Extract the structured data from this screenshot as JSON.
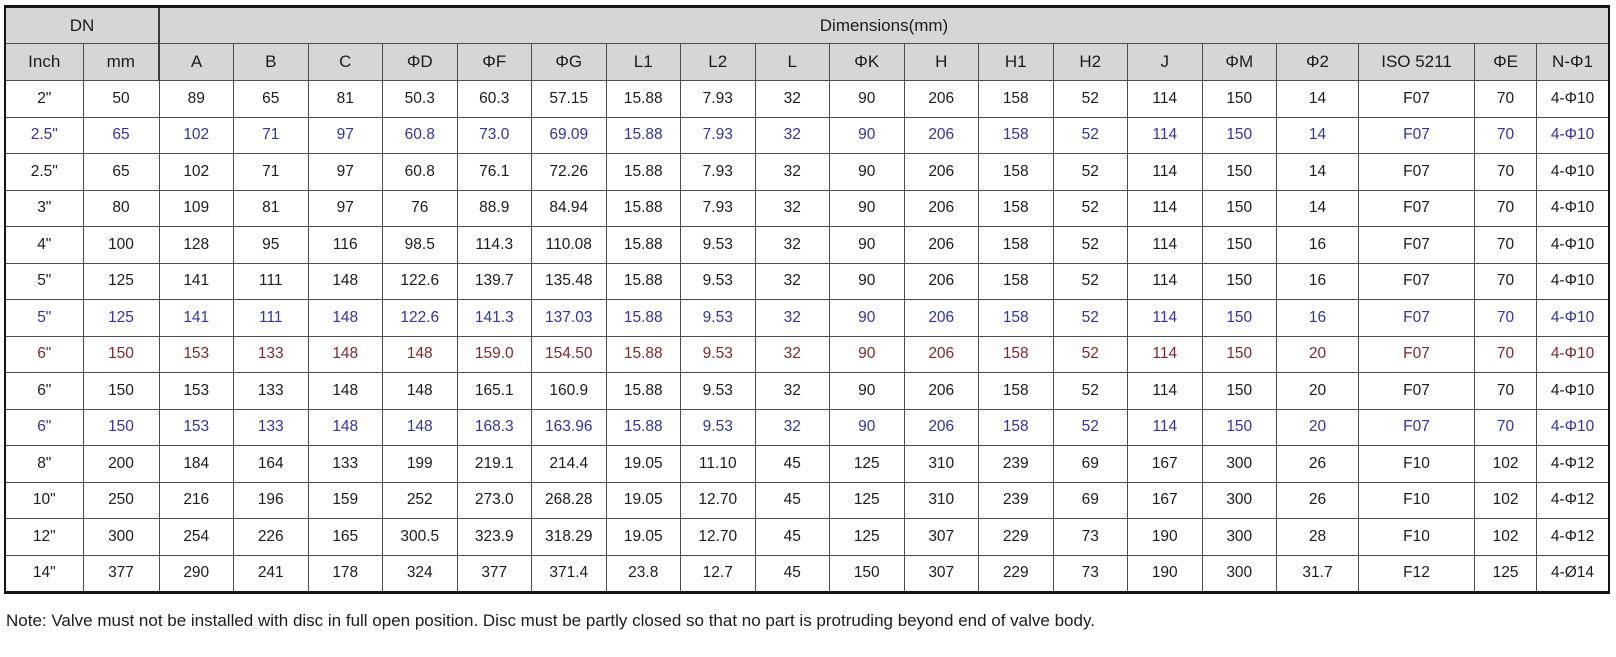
{
  "table": {
    "group_headers": [
      {
        "label": "DN",
        "colspan": 2
      },
      {
        "label": "Dimensions(mm)",
        "colspan": 19
      }
    ],
    "columns": [
      "Inch",
      "mm",
      "A",
      "B",
      "C",
      "ΦD",
      "ΦF",
      "ΦG",
      "L1",
      "L2",
      "L",
      "ΦK",
      "H",
      "H1",
      "H2",
      "J",
      "ΦM",
      "Φ2",
      "ISO 5211",
      "ΦE",
      "N-Φ1"
    ],
    "rows": [
      {
        "color": "black",
        "cells": [
          "2\"",
          "50",
          "89",
          "65",
          "81",
          "50.3",
          "60.3",
          "57.15",
          "15.88",
          "7.93",
          "32",
          "90",
          "206",
          "158",
          "52",
          "114",
          "150",
          "14",
          "F07",
          "70",
          "4-Φ10"
        ]
      },
      {
        "color": "blue",
        "cells": [
          "2.5\"",
          "65",
          "102",
          "71",
          "97",
          "60.8",
          "73.0",
          "69.09",
          "15.88",
          "7.93",
          "32",
          "90",
          "206",
          "158",
          "52",
          "114",
          "150",
          "14",
          "F07",
          "70",
          "4-Φ10"
        ]
      },
      {
        "color": "black",
        "cells": [
          "2.5\"",
          "65",
          "102",
          "71",
          "97",
          "60.8",
          "76.1",
          "72.26",
          "15.88",
          "7.93",
          "32",
          "90",
          "206",
          "158",
          "52",
          "114",
          "150",
          "14",
          "F07",
          "70",
          "4-Φ10"
        ]
      },
      {
        "color": "black",
        "cells": [
          "3\"",
          "80",
          "109",
          "81",
          "97",
          "76",
          "88.9",
          "84.94",
          "15.88",
          "7.93",
          "32",
          "90",
          "206",
          "158",
          "52",
          "114",
          "150",
          "14",
          "F07",
          "70",
          "4-Φ10"
        ]
      },
      {
        "color": "black",
        "cells": [
          "4\"",
          "100",
          "128",
          "95",
          "116",
          "98.5",
          "114.3",
          "110.08",
          "15.88",
          "9.53",
          "32",
          "90",
          "206",
          "158",
          "52",
          "114",
          "150",
          "16",
          "F07",
          "70",
          "4-Φ10"
        ]
      },
      {
        "color": "black",
        "cells": [
          "5\"",
          "125",
          "141",
          "111",
          "148",
          "122.6",
          "139.7",
          "135.48",
          "15.88",
          "9.53",
          "32",
          "90",
          "206",
          "158",
          "52",
          "114",
          "150",
          "16",
          "F07",
          "70",
          "4-Φ10"
        ]
      },
      {
        "color": "blue",
        "cells": [
          "5\"",
          "125",
          "141",
          "111",
          "148",
          "122.6",
          "141.3",
          "137.03",
          "15.88",
          "9.53",
          "32",
          "90",
          "206",
          "158",
          "52",
          "114",
          "150",
          "16",
          "F07",
          "70",
          "4-Φ10"
        ]
      },
      {
        "color": "darkred",
        "cells": [
          "6\"",
          "150",
          "153",
          "133",
          "148",
          "148",
          "159.0",
          "154.50",
          "15.88",
          "9.53",
          "32",
          "90",
          "206",
          "158",
          "52",
          "114",
          "150",
          "20",
          "F07",
          "70",
          "4-Φ10"
        ]
      },
      {
        "color": "black",
        "cells": [
          "6\"",
          "150",
          "153",
          "133",
          "148",
          "148",
          "165.1",
          "160.9",
          "15.88",
          "9.53",
          "32",
          "90",
          "206",
          "158",
          "52",
          "114",
          "150",
          "20",
          "F07",
          "70",
          "4-Φ10"
        ]
      },
      {
        "color": "blue",
        "cells": [
          "6\"",
          "150",
          "153",
          "133",
          "148",
          "148",
          "168.3",
          "163.96",
          "15.88",
          "9.53",
          "32",
          "90",
          "206",
          "158",
          "52",
          "114",
          "150",
          "20",
          "F07",
          "70",
          "4-Φ10"
        ]
      },
      {
        "color": "black",
        "cells": [
          "8\"",
          "200",
          "184",
          "164",
          "133",
          "199",
          "219.1",
          "214.4",
          "19.05",
          "11.10",
          "45",
          "125",
          "310",
          "239",
          "69",
          "167",
          "300",
          "26",
          "F10",
          "102",
          "4-Φ12"
        ]
      },
      {
        "color": "black",
        "cells": [
          "10\"",
          "250",
          "216",
          "196",
          "159",
          "252",
          "273.0",
          "268.28",
          "19.05",
          "12.70",
          "45",
          "125",
          "310",
          "239",
          "69",
          "167",
          "300",
          "26",
          "F10",
          "102",
          "4-Φ12"
        ]
      },
      {
        "color": "black",
        "cells": [
          "12\"",
          "300",
          "254",
          "226",
          "165",
          "300.5",
          "323.9",
          "318.29",
          "19.05",
          "12.70",
          "45",
          "125",
          "307",
          "229",
          "73",
          "190",
          "300",
          "28",
          "F10",
          "102",
          "4-Φ12"
        ]
      },
      {
        "color": "black",
        "cells": [
          "14\"",
          "377",
          "290",
          "241",
          "178",
          "324",
          "377",
          "371.4",
          "23.8",
          "12.7",
          "45",
          "150",
          "307",
          "229",
          "73",
          "190",
          "300",
          "31.7",
          "F12",
          "125",
          "4-Ø14"
        ]
      }
    ]
  },
  "note": "Note: Valve must not be installed with disc in full open position. Disc must be partly closed so that no part is protruding beyond end of valve body.",
  "colors": {
    "blue": "#3434a0",
    "darkred": "#7c2b2b",
    "black": "#1c1c1c",
    "header_bg": "#d6d6d6"
  }
}
